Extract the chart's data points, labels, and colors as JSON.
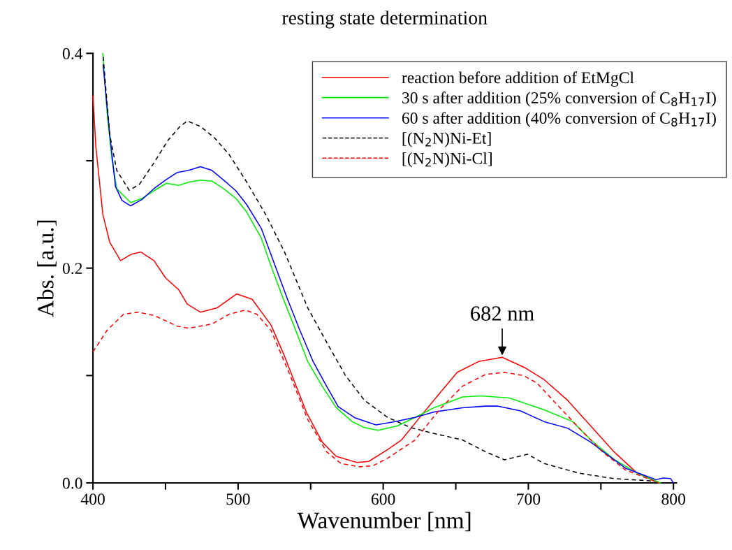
{
  "chart_data": {
    "type": "line",
    "title": "resting state determination",
    "xlabel": "Wavenumber [nm]",
    "ylabel": "Abs. [a.u.]",
    "xlim": [
      400,
      802
    ],
    "ylim": [
      0,
      0.4
    ],
    "xticks": [
      400,
      {
        "value": 450,
        "label": null
      },
      500,
      {
        "value": 550,
        "label": null
      },
      600,
      {
        "value": 650,
        "label": null
      },
      700,
      {
        "value": 750,
        "label": null
      },
      800
    ],
    "yticks": [
      {
        "value": 0,
        "label": "0.0"
      },
      {
        "value": 0.1,
        "label": null
      },
      0.2,
      {
        "value": 0.3,
        "label": null
      },
      0.4
    ],
    "grid": false,
    "legend": "top right",
    "marker": "none",
    "annotations": [
      {
        "text": "682 nm",
        "x": 682,
        "y": 0.117
      }
    ],
    "series": [
      {
        "name": "reaction before addition of EtMgCl",
        "color": "#ff0000",
        "line_style": "solid",
        "x": [
          400,
          402,
          406.8,
          411.6,
          419,
          426.6,
          433,
          442,
          450,
          459,
          465,
          474,
          485.5,
          499,
          509.7,
          522.7,
          532,
          547,
          558,
          567.6,
          582,
          590,
          603,
          612.6,
          627,
          638.6,
          651,
          665.7,
          682,
          698,
          711,
          727,
          743,
          759,
          775,
          790
        ],
        "values": [
          0.36,
          0.313,
          0.25,
          0.224,
          0.207,
          0.213,
          0.215,
          0.207,
          0.191,
          0.18,
          0.1665,
          0.159,
          0.163,
          0.176,
          0.171,
          0.147,
          0.118,
          0.066,
          0.038,
          0.0247,
          0.019,
          0.02,
          0.031,
          0.04,
          0.064,
          0.083,
          0.103,
          0.113,
          0.117,
          0.107,
          0.096,
          0.077,
          0.053,
          0.029,
          0.009,
          0
        ]
      },
      {
        "name": "30 s after addition (25% conversion of C$_{8}$H$_{17}$I)",
        "color": "#00ee00",
        "line_style": "solid",
        "x": [
          406.8,
          409.7,
          413,
          416.4,
          426,
          433.8,
          442,
          450.7,
          459,
          466,
          474,
          482,
          490,
          498.5,
          506,
          516,
          522.7,
          530.4,
          538.6,
          548,
          558,
          567.6,
          578.7,
          587,
          596.6,
          609.7,
          622,
          635,
          654.6,
          667.6,
          687,
          711,
          730.6,
          743,
          759,
          775,
          791
        ],
        "values": [
          0.4,
          0.345,
          0.302,
          0.274,
          0.261,
          0.265,
          0.272,
          0.279,
          0.277,
          0.28,
          0.282,
          0.281,
          0.274,
          0.265,
          0.252,
          0.228,
          0.202,
          0.174,
          0.146,
          0.113,
          0.09,
          0.07,
          0.057,
          0.0515,
          0.049,
          0.053,
          0.061,
          0.07,
          0.08,
          0.081,
          0.079,
          0.068,
          0.057,
          0.04,
          0.022,
          0.009,
          0
        ]
      },
      {
        "name": "60 s after addition (40% conversion of C$_{8}$H$_{17}$I)",
        "color": "#0000ff",
        "line_style": "solid",
        "x": [
          407,
          411.6,
          415.5,
          420,
          426,
          433.8,
          442,
          450,
          458,
          466,
          474,
          482,
          490,
          498.5,
          506,
          516,
          533.8,
          542,
          551.7,
          561,
          569,
          580.7,
          595,
          607.7,
          622,
          635,
          654.6,
          670.5,
          678.7,
          694.7,
          711,
          727,
          743,
          756,
          767,
          780,
          788,
          793,
          798,
          800
        ],
        "values": [
          0.389,
          0.324,
          0.276,
          0.263,
          0.258,
          0.264,
          0.274,
          0.282,
          0.289,
          0.291,
          0.2945,
          0.291,
          0.282,
          0.272,
          0.259,
          0.237,
          0.172,
          0.144,
          0.113,
          0.09,
          0.071,
          0.0605,
          0.054,
          0.057,
          0.061,
          0.066,
          0.07,
          0.0715,
          0.0715,
          0.067,
          0.057,
          0.051,
          0.038,
          0.0247,
          0.0137,
          0.007,
          0.003,
          0.0046,
          0.004,
          0
        ]
      },
      {
        "name": "[(N$_{2}$N)Ni-Et]",
        "color": "#000000",
        "line_style": "dashed",
        "x": [
          407,
          411.6,
          416.4,
          425,
          432,
          442,
          451.7,
          460,
          465,
          474,
          484,
          493.7,
          506,
          519,
          532,
          548,
          561,
          574,
          587,
          603,
          619,
          635,
          654.6,
          670.5,
          683.6,
          699.5,
          711,
          735,
          759,
          783.6,
          788
        ],
        "values": [
          0.397,
          0.324,
          0.291,
          0.2725,
          0.278,
          0.298,
          0.319,
          0.332,
          0.337,
          0.332,
          0.321,
          0.306,
          0.28,
          0.25,
          0.215,
          0.163,
          0.131,
          0.1,
          0.077,
          0.061,
          0.0515,
          0.046,
          0.04,
          0.029,
          0.0215,
          0.0267,
          0.018,
          0.009,
          0.004,
          0.002,
          0
        ]
      },
      {
        "name": "[(N$_{2}$N)Ni-Cl]",
        "color": "#ff0000",
        "line_style": "dashed",
        "x": [
          400,
          409.7,
          421,
          431,
          442,
          458,
          466,
          482,
          493.7,
          505,
          513,
          522.7,
          535,
          548,
          561,
          571,
          583.6,
          593,
          603,
          622,
          638.6,
          654.6,
          670.5,
          683.6,
          696.6,
          706,
          719,
          735,
          751,
          767,
          790
        ],
        "values": [
          0.122,
          0.142,
          0.157,
          0.159,
          0.156,
          0.146,
          0.144,
          0.148,
          0.157,
          0.161,
          0.157,
          0.142,
          0.103,
          0.059,
          0.029,
          0.018,
          0.015,
          0.016,
          0.023,
          0.04,
          0.068,
          0.09,
          0.101,
          0.103,
          0.1,
          0.093,
          0.074,
          0.051,
          0.029,
          0.012,
          0
        ]
      }
    ]
  }
}
